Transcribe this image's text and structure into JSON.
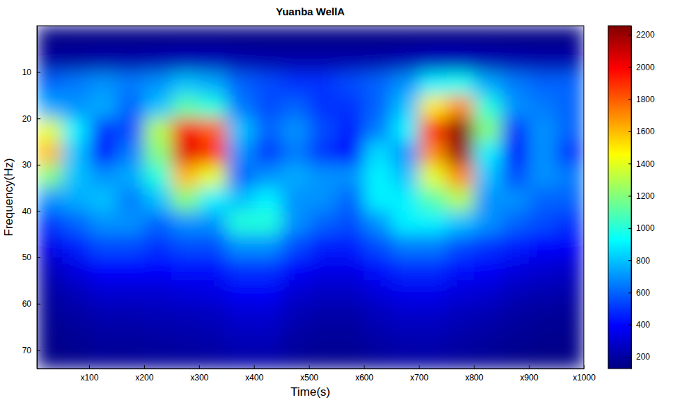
{
  "chart_data": {
    "type": "heatmap",
    "title": "Yuanba WellA",
    "x_label": "Time(s)",
    "y_label": "Frequency(Hz)",
    "color": "jet",
    "xlim": [
      5,
      1000
    ],
    "ylim": [
      0,
      74
    ],
    "xticks": [
      {
        "value": 100,
        "label": "x100"
      },
      {
        "value": 200,
        "label": "x200"
      },
      {
        "value": 300,
        "label": "x300"
      },
      {
        "value": 400,
        "label": "x400"
      },
      {
        "value": 500,
        "label": "x500"
      },
      {
        "value": 600,
        "label": "x600"
      },
      {
        "value": 700,
        "label": "x700"
      },
      {
        "value": 800,
        "label": "x800"
      },
      {
        "value": 900,
        "label": "x900"
      },
      {
        "value": 1000,
        "label": "x1000"
      }
    ],
    "yticks": [
      10,
      20,
      30,
      40,
      50,
      60,
      70
    ],
    "x_bins": [
      5,
      50,
      100,
      150,
      200,
      250,
      300,
      350,
      400,
      450,
      500,
      550,
      600,
      650,
      700,
      750,
      800,
      850,
      900,
      950,
      1000
    ],
    "y_bins": [
      0,
      5,
      10,
      15,
      20,
      25,
      30,
      35,
      40,
      45,
      50,
      55,
      60,
      65,
      70,
      74
    ],
    "cells": [
      [
        140,
        140,
        140,
        140,
        140,
        140,
        140,
        140,
        140,
        140,
        140,
        140,
        140,
        140,
        140,
        140,
        140,
        140,
        140,
        140
      ],
      [
        200,
        200,
        220,
        220,
        230,
        250,
        250,
        230,
        220,
        220,
        220,
        220,
        220,
        240,
        260,
        260,
        240,
        230,
        220,
        220
      ],
      [
        600,
        650,
        700,
        650,
        700,
        800,
        750,
        600,
        550,
        500,
        500,
        550,
        600,
        700,
        900,
        950,
        750,
        650,
        600,
        600
      ],
      [
        750,
        700,
        750,
        600,
        800,
        1100,
        1000,
        650,
        550,
        600,
        500,
        500,
        600,
        800,
        1500,
        1700,
        1000,
        700,
        650,
        600
      ],
      [
        1400,
        900,
        500,
        550,
        1300,
        2000,
        1800,
        800,
        600,
        700,
        550,
        450,
        650,
        900,
        1900,
        2250,
        1200,
        500,
        700,
        600
      ],
      [
        1600,
        800,
        400,
        650,
        1200,
        2050,
        1900,
        700,
        500,
        650,
        500,
        400,
        850,
        700,
        1700,
        2200,
        900,
        400,
        700,
        500
      ],
      [
        1200,
        800,
        700,
        750,
        1000,
        1600,
        1400,
        600,
        700,
        750,
        700,
        700,
        900,
        800,
        1400,
        1700,
        800,
        550,
        700,
        650
      ],
      [
        700,
        750,
        800,
        650,
        800,
        1200,
        900,
        800,
        900,
        700,
        700,
        600,
        900,
        900,
        1100,
        1300,
        700,
        700,
        600,
        600
      ],
      [
        500,
        600,
        700,
        700,
        600,
        700,
        700,
        1000,
        1000,
        700,
        600,
        550,
        700,
        900,
        900,
        800,
        700,
        600,
        550,
        500
      ],
      [
        350,
        450,
        550,
        550,
        500,
        550,
        550,
        700,
        700,
        550,
        450,
        450,
        550,
        650,
        650,
        550,
        500,
        450,
        400,
        380
      ],
      [
        250,
        330,
        400,
        400,
        400,
        420,
        420,
        500,
        500,
        400,
        350,
        350,
        420,
        480,
        480,
        420,
        380,
        330,
        300,
        280
      ],
      [
        200,
        250,
        300,
        300,
        300,
        320,
        330,
        380,
        380,
        300,
        270,
        270,
        320,
        360,
        360,
        320,
        300,
        250,
        230,
        220
      ],
      [
        170,
        200,
        230,
        230,
        240,
        250,
        260,
        300,
        300,
        240,
        210,
        210,
        250,
        280,
        280,
        250,
        230,
        200,
        180,
        170
      ],
      [
        150,
        170,
        190,
        190,
        200,
        210,
        220,
        250,
        250,
        200,
        180,
        180,
        210,
        230,
        230,
        210,
        190,
        170,
        160,
        150
      ],
      [
        140,
        150,
        170,
        170,
        180,
        180,
        190,
        210,
        210,
        180,
        160,
        160,
        180,
        200,
        200,
        180,
        170,
        150,
        140,
        140
      ]
    ],
    "colorbar": {
      "range": [
        127,
        2256
      ],
      "ticks": [
        200,
        400,
        600,
        800,
        1000,
        1200,
        1400,
        1600,
        1800,
        2000,
        2200
      ]
    }
  }
}
